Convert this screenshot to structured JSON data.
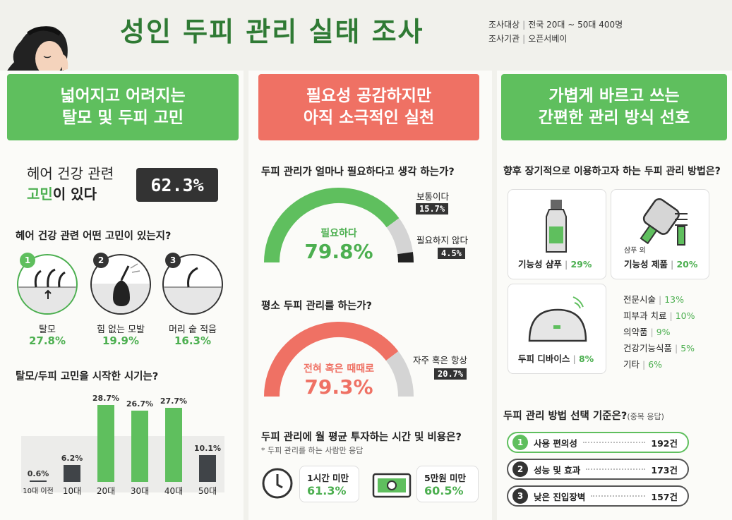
{
  "title": "성인 두피 관리 실태 조사",
  "meta": {
    "target_label": "조사대상",
    "target_value": "전국 20대 ~ 50대 400명",
    "org_label": "조사기관",
    "org_value": "오픈서베이"
  },
  "col1": {
    "header_line1": "넓어지고 어려지는",
    "header_line2": "탈모 및 두피 고민",
    "headline_line1": "헤어 건강 관련",
    "headline_line2_a": "고민",
    "headline_line2_b": "이 있다",
    "headline_value": "62.3%",
    "q1": "헤어 건강 관련 어떤 고민이 있는지?",
    "concerns": [
      {
        "num": "1",
        "label": "탈모",
        "value": "27.8%"
      },
      {
        "num": "2",
        "label": "힘 없는 모발",
        "value": "19.9%"
      },
      {
        "num": "3",
        "label": "머리 숱 적음",
        "value": "16.3%"
      }
    ],
    "q2": "탈모/두피 고민을 시작한 시기는?"
  },
  "chart_data": {
    "type": "bar",
    "title": "탈모/두피 고민을 시작한 시기는?",
    "categories": [
      "10대 이전",
      "10대",
      "20대",
      "30대",
      "40대",
      "50대"
    ],
    "values": [
      0.6,
      6.2,
      28.7,
      26.7,
      27.7,
      10.1
    ],
    "labels": [
      "0.6%",
      "6.2%",
      "28.7%",
      "26.7%",
      "27.7%",
      "10.1%"
    ],
    "ylim": [
      0,
      30
    ],
    "colors": {
      "highlight": "#5fbf5e",
      "normal": "#404448"
    }
  },
  "col2": {
    "header_line1": "필요성 공감하지만",
    "header_line2": "아직 소극적인 실천",
    "q1": "두피 관리가 얼마나 필요하다고 생각 하는가?",
    "need": {
      "label_main": "필요하다",
      "value_main": "79.8%",
      "label_mid": "보통이다",
      "value_mid": "15.7%",
      "label_low": "필요하지 않다",
      "value_low": "4.5%",
      "frac_main": 0.798,
      "frac_mid": 0.157,
      "frac_low": 0.045
    },
    "q2": "평소 두피 관리를 하는가?",
    "practice": {
      "label_main_a": "전혀 혹은 ",
      "label_main_b": "때때로",
      "value_main": "79.3%",
      "label_other": "자주 혹은 항상",
      "value_other": "20.7%",
      "frac_main": 0.793
    },
    "q3": "두피 관리에 월 평균 투자하는 시간 및 비용은?",
    "q3_note": "* 두피 관리를 하는 사람만 응답",
    "time_label": "1시간 미만",
    "time_value": "61.3%",
    "cost_label": "5만원 미만",
    "cost_value": "60.5%"
  },
  "col3": {
    "header_line1": "가볍게 바르고 쓰는",
    "header_line2": "간편한 관리 방식 선호",
    "q1": "향후 장기적으로 이용하고자 하는 두피 관리 방법은?",
    "shampoo_label": "기능성 샴푸",
    "shampoo_value": "29%",
    "product_small": "샴푸 외",
    "product_label": "기능성 제품",
    "product_value": "20%",
    "device_label": "두피 디바이스",
    "device_value": "8%",
    "others": [
      {
        "label": "전문시술",
        "value": "13%"
      },
      {
        "label": "피부과 치료",
        "value": "10%"
      },
      {
        "label": "의약품",
        "value": "9%"
      },
      {
        "label": "건강기능식품",
        "value": "5%"
      },
      {
        "label": "기타",
        "value": "6%"
      }
    ],
    "q2": "두피 관리 방법 선택 기준은?",
    "q2_note": "(중복 응답)",
    "criteria": [
      {
        "num": "1",
        "label": "사용 편의성",
        "value": "192건"
      },
      {
        "num": "2",
        "label": "성능 및 효과",
        "value": "173건"
      },
      {
        "num": "3",
        "label": "낮은 진입장벽",
        "value": "157건"
      }
    ]
  }
}
